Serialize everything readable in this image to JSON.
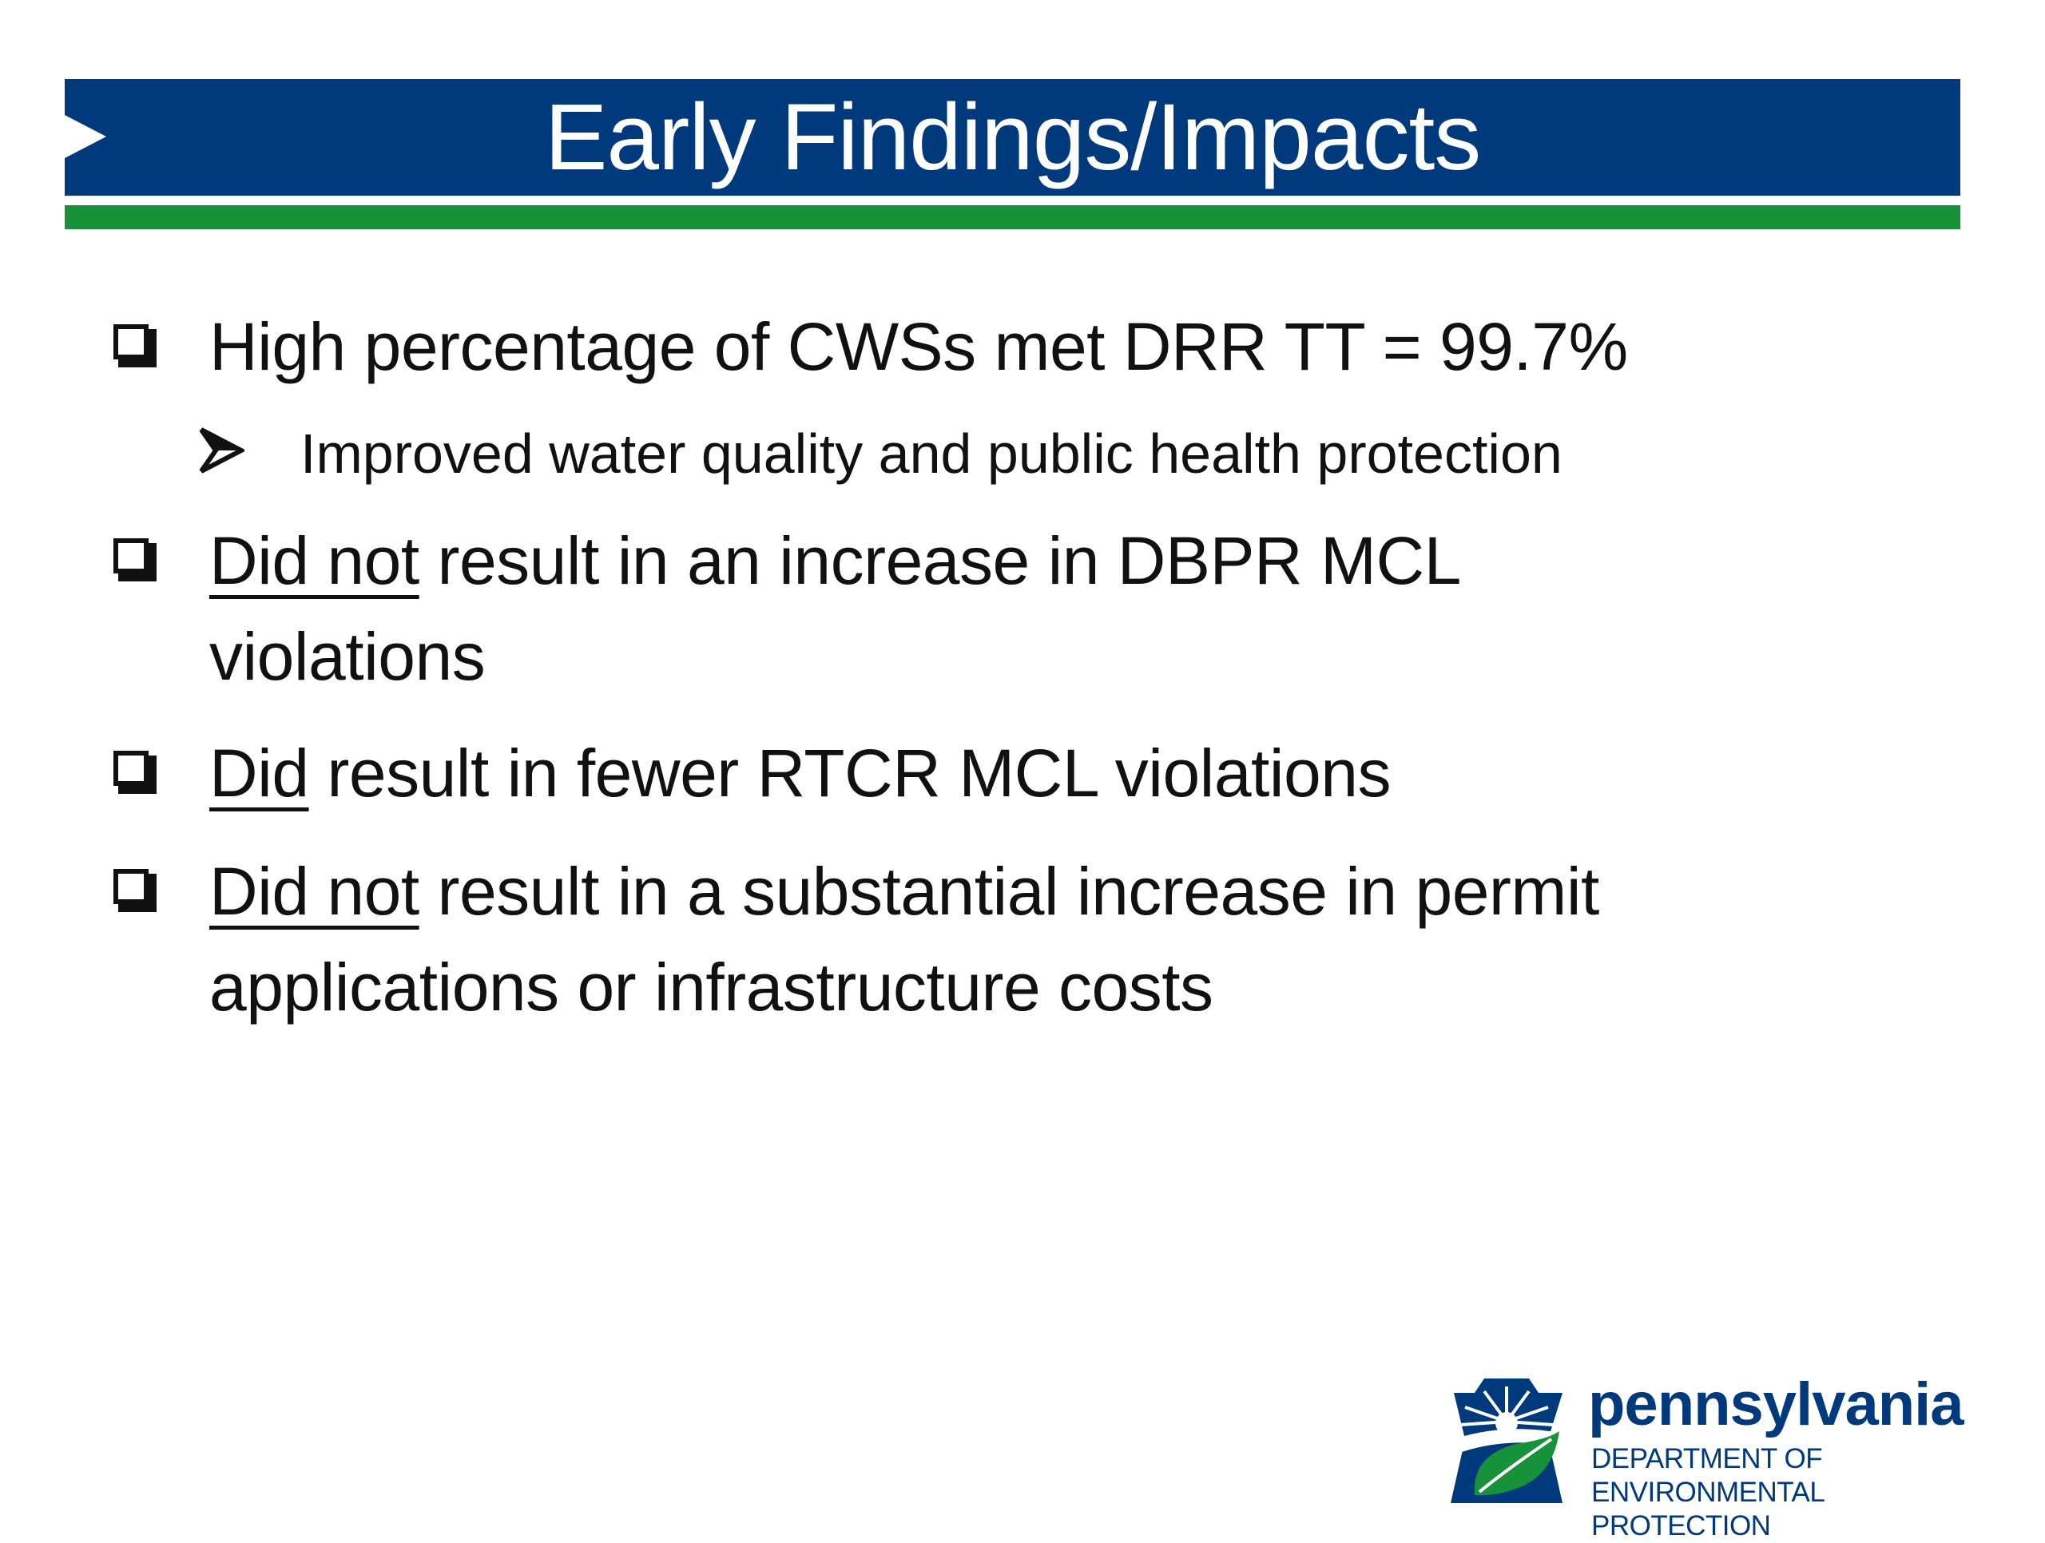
{
  "title": "Early Findings/Impacts",
  "colors": {
    "title_band": "#003a7d",
    "accent_rule": "#17913a",
    "logo_blue": "#003a7d"
  },
  "bullets": [
    {
      "text": "High percentage of CWSs met DRR TT = 99.7%",
      "sub": "Improved water quality and public health protection"
    },
    {
      "underlined": "Did not",
      "rest_line1": " result in an increase in DBPR MCL",
      "rest_line2": "violations"
    },
    {
      "underlined": "Did",
      "rest_line1": " result in fewer RTCR MCL violations"
    },
    {
      "underlined": "Did not",
      "rest_line1": " result in a substantial increase in permit",
      "rest_line2": "applications or infrastructure costs"
    }
  ],
  "logo": {
    "word": "pennsylvania",
    "dept_line1": "DEPARTMENT OF ENVIRONMENTAL",
    "dept_line2": "PROTECTION"
  },
  "icons": {
    "bullet": "checkbox-icon",
    "sub_bullet": "arrowhead-icon",
    "logo_mark": "keystone-leaf-icon"
  }
}
